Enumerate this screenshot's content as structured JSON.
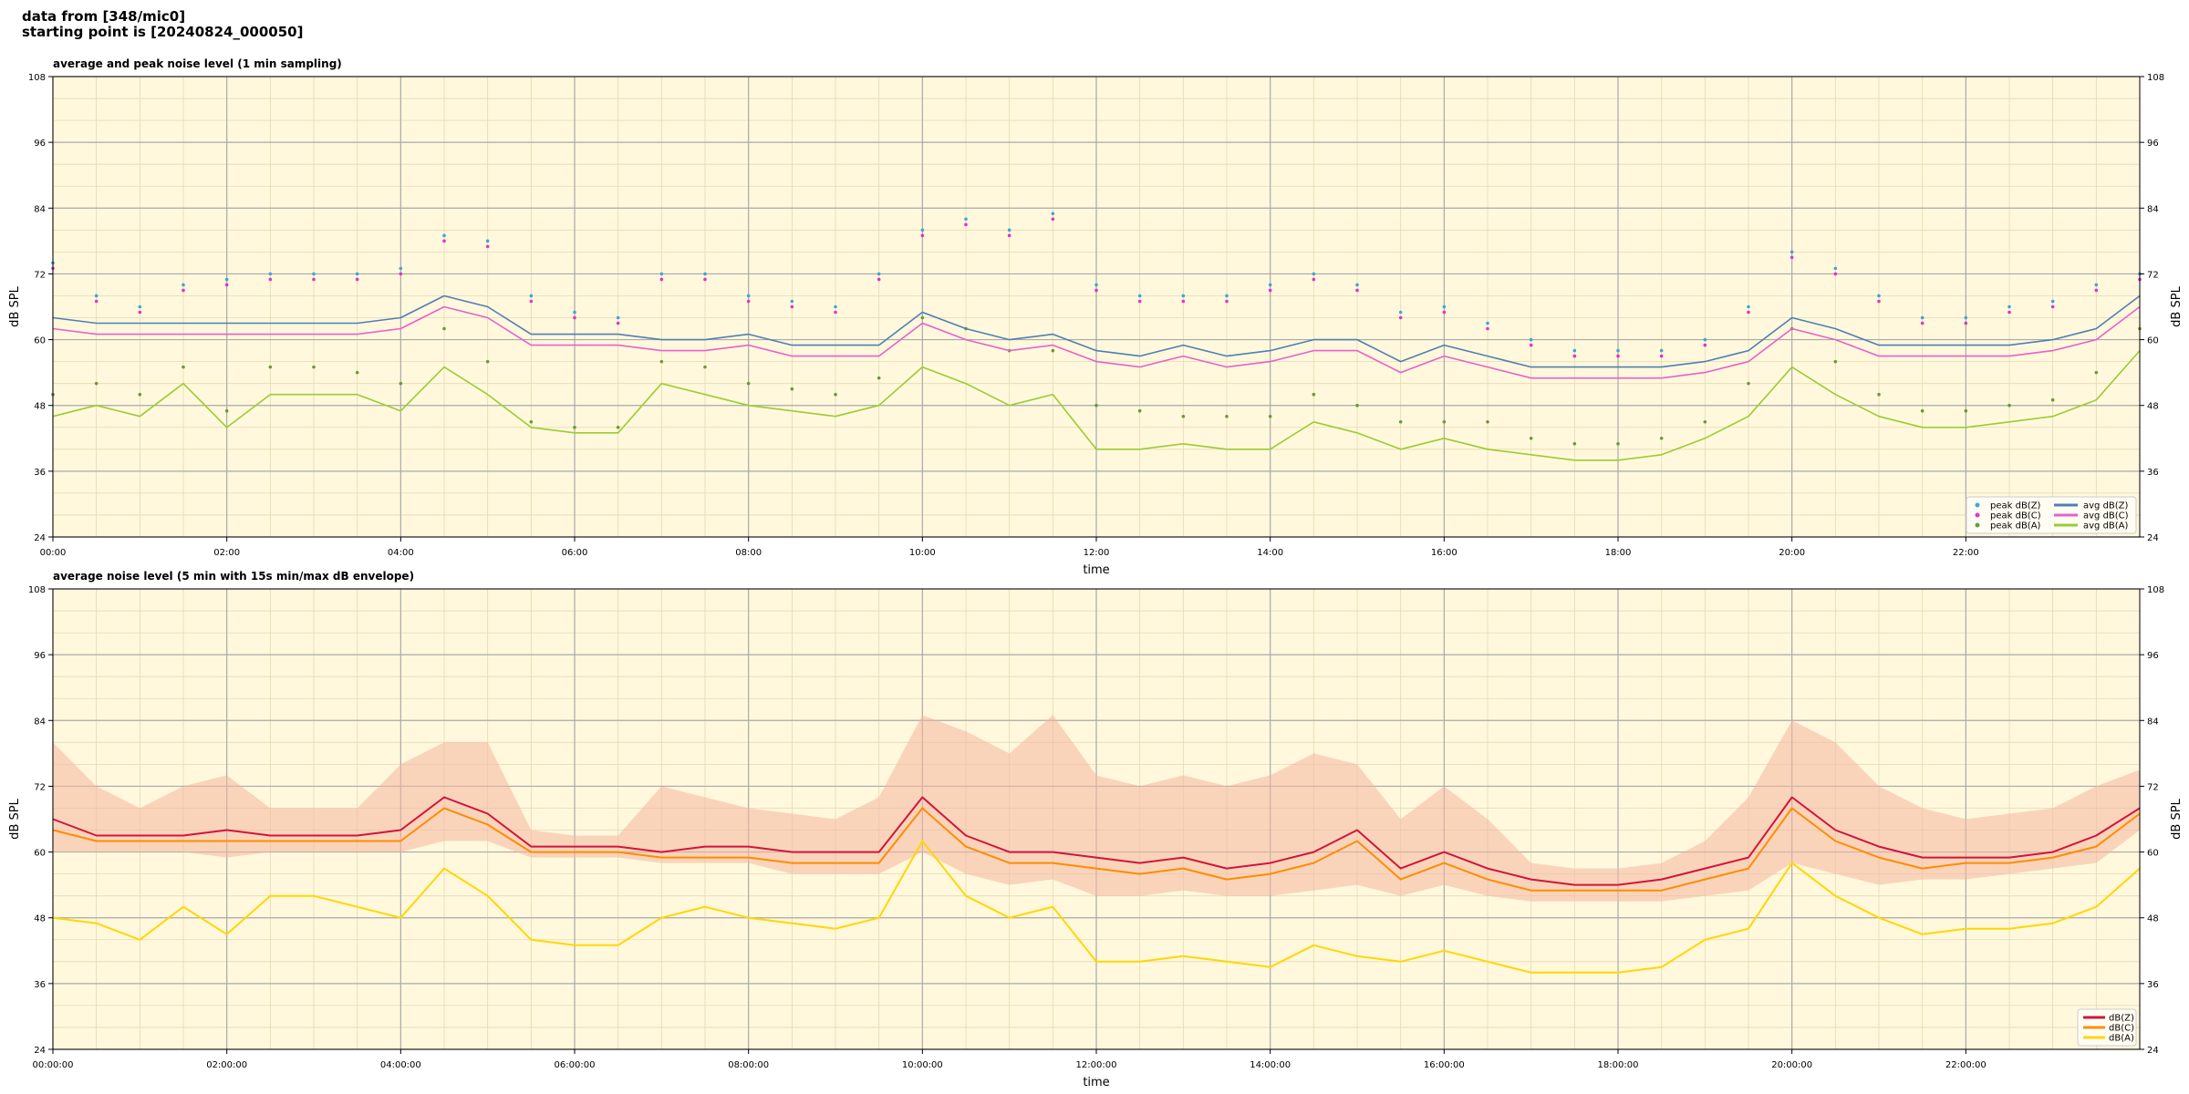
{
  "header": {
    "line1": "data from [348/mic0]",
    "line2": "starting point is [20240824_000050]"
  },
  "colors": {
    "plot_bg": "#fff8dc",
    "grid_major": "#a9a9a9",
    "grid_minor": "#e6d9b3",
    "avg_z": "#4f7fb5",
    "avg_c": "#e661cc",
    "avg_a": "#9acd32",
    "peak_z": "#3ba8d8",
    "peak_c": "#e233c9",
    "peak_a": "#6a9a3a",
    "env": "#f4b7a1",
    "line_z": "#d2143c",
    "line_c": "#ff8c00",
    "line_a": "#ffd700"
  },
  "chart_data": [
    {
      "type": "line",
      "title": "average and peak noise level (1 min sampling)",
      "xlabel": "time",
      "ylabel": "dB SPL",
      "ylabel_right": "dB SPL",
      "xlim": [
        0,
        24
      ],
      "ylim": [
        24,
        108
      ],
      "x_ticks": [
        0,
        2,
        4,
        6,
        8,
        10,
        12,
        14,
        16,
        18,
        20,
        22
      ],
      "x_tick_labels": [
        "00:00",
        "02:00",
        "04:00",
        "06:00",
        "08:00",
        "10:00",
        "12:00",
        "14:00",
        "16:00",
        "18:00",
        "20:00",
        "22:00"
      ],
      "y_ticks": [
        24,
        36,
        48,
        60,
        72,
        84,
        96,
        108
      ],
      "y_tick_labels": [
        "24",
        "36",
        "48",
        "60",
        "72",
        "84",
        "96",
        "108"
      ],
      "grid": true,
      "legend_position": "bottom-right",
      "x_unit": "hour",
      "x": [
        0,
        0.5,
        1,
        1.5,
        2,
        2.5,
        3,
        3.5,
        4,
        4.5,
        5,
        5.5,
        6,
        6.5,
        7,
        7.5,
        8,
        8.5,
        9,
        9.5,
        10,
        10.5,
        11,
        11.5,
        12,
        12.5,
        13,
        13.5,
        14,
        14.5,
        15,
        15.5,
        16,
        16.5,
        17,
        17.5,
        18,
        18.5,
        19,
        19.5,
        20,
        20.5,
        21,
        21.5,
        22,
        22.5,
        23,
        23.5,
        24
      ],
      "series": [
        {
          "name": "peak dB(Z)",
          "kind": "points",
          "color_key": "peak_z",
          "values": [
            74,
            68,
            66,
            70,
            71,
            72,
            72,
            72,
            73,
            79,
            78,
            68,
            65,
            64,
            72,
            72,
            68,
            67,
            66,
            72,
            80,
            82,
            80,
            83,
            70,
            68,
            68,
            68,
            70,
            72,
            70,
            65,
            66,
            63,
            60,
            58,
            58,
            58,
            60,
            66,
            76,
            73,
            68,
            64,
            64,
            66,
            67,
            70,
            72
          ]
        },
        {
          "name": "peak dB(C)",
          "kind": "points",
          "color_key": "peak_c",
          "values": [
            73,
            67,
            65,
            69,
            70,
            71,
            71,
            71,
            72,
            78,
            77,
            67,
            64,
            63,
            71,
            71,
            67,
            66,
            65,
            71,
            79,
            81,
            79,
            82,
            69,
            67,
            67,
            67,
            69,
            71,
            69,
            64,
            65,
            62,
            59,
            57,
            57,
            57,
            59,
            65,
            75,
            72,
            67,
            63,
            63,
            65,
            66,
            69,
            71
          ]
        },
        {
          "name": "peak dB(A)",
          "kind": "points",
          "color_key": "peak_a",
          "values": [
            50,
            52,
            50,
            55,
            47,
            55,
            55,
            54,
            52,
            62,
            56,
            45,
            44,
            44,
            56,
            55,
            52,
            51,
            50,
            53,
            64,
            62,
            58,
            58,
            48,
            47,
            46,
            46,
            46,
            50,
            48,
            45,
            45,
            45,
            42,
            41,
            41,
            42,
            45,
            52,
            62,
            56,
            50,
            47,
            47,
            48,
            49,
            54,
            62
          ]
        },
        {
          "name": "avg dB(Z)",
          "kind": "line",
          "color_key": "avg_z",
          "values": [
            64,
            63,
            63,
            63,
            63,
            63,
            63,
            63,
            64,
            68,
            66,
            61,
            61,
            61,
            60,
            60,
            61,
            59,
            59,
            59,
            65,
            62,
            60,
            61,
            58,
            57,
            59,
            57,
            58,
            60,
            60,
            56,
            59,
            57,
            55,
            55,
            55,
            55,
            56,
            58,
            64,
            62,
            59,
            59,
            59,
            59,
            60,
            62,
            68
          ]
        },
        {
          "name": "avg dB(C)",
          "kind": "line",
          "color_key": "avg_c",
          "values": [
            62,
            61,
            61,
            61,
            61,
            61,
            61,
            61,
            62,
            66,
            64,
            59,
            59,
            59,
            58,
            58,
            59,
            57,
            57,
            57,
            63,
            60,
            58,
            59,
            56,
            55,
            57,
            55,
            56,
            58,
            58,
            54,
            57,
            55,
            53,
            53,
            53,
            53,
            54,
            56,
            62,
            60,
            57,
            57,
            57,
            57,
            58,
            60,
            66
          ]
        },
        {
          "name": "avg dB(A)",
          "kind": "line",
          "color_key": "avg_a",
          "values": [
            46,
            48,
            46,
            52,
            44,
            50,
            50,
            50,
            47,
            55,
            50,
            44,
            43,
            43,
            52,
            50,
            48,
            47,
            46,
            48,
            55,
            52,
            48,
            50,
            40,
            40,
            41,
            40,
            40,
            45,
            43,
            40,
            42,
            40,
            39,
            38,
            38,
            39,
            42,
            46,
            55,
            50,
            46,
            44,
            44,
            45,
            46,
            49,
            58
          ]
        }
      ]
    },
    {
      "type": "line",
      "title": "average noise level (5 min with 15s min/max dB envelope)",
      "xlabel": "time",
      "ylabel": "dB SPL",
      "ylabel_right": "dB SPL",
      "xlim": [
        0,
        24
      ],
      "ylim": [
        24,
        108
      ],
      "x_ticks": [
        0,
        2,
        4,
        6,
        8,
        10,
        12,
        14,
        16,
        18,
        20,
        22
      ],
      "x_tick_labels": [
        "00:00:00",
        "02:00:00",
        "04:00:00",
        "06:00:00",
        "08:00:00",
        "10:00:00",
        "12:00:00",
        "14:00:00",
        "16:00:00",
        "18:00:00",
        "20:00:00",
        "22:00:00"
      ],
      "y_ticks": [
        24,
        36,
        48,
        60,
        72,
        84,
        96,
        108
      ],
      "y_tick_labels": [
        "24",
        "36",
        "48",
        "60",
        "72",
        "84",
        "96",
        "108"
      ],
      "grid": true,
      "legend_position": "bottom-right",
      "x_unit": "hour",
      "x": [
        0,
        0.5,
        1,
        1.5,
        2,
        2.5,
        3,
        3.5,
        4,
        4.5,
        5,
        5.5,
        6,
        6.5,
        7,
        7.5,
        8,
        8.5,
        9,
        9.5,
        10,
        10.5,
        11,
        11.5,
        12,
        12.5,
        13,
        13.5,
        14,
        14.5,
        15,
        15.5,
        16,
        16.5,
        17,
        17.5,
        18,
        18.5,
        19,
        19.5,
        20,
        20.5,
        21,
        21.5,
        22,
        22.5,
        23,
        23.5,
        24
      ],
      "envelope": {
        "color_key": "env",
        "upper": [
          80,
          72,
          68,
          72,
          74,
          68,
          68,
          68,
          76,
          80,
          80,
          64,
          63,
          63,
          72,
          70,
          68,
          67,
          66,
          70,
          85,
          82,
          78,
          85,
          74,
          72,
          74,
          72,
          74,
          78,
          76,
          66,
          72,
          66,
          58,
          57,
          57,
          58,
          62,
          70,
          84,
          80,
          72,
          68,
          66,
          67,
          68,
          72,
          75
        ],
        "lower": [
          60,
          60,
          60,
          60,
          59,
          60,
          60,
          60,
          60,
          62,
          62,
          59,
          59,
          59,
          58,
          58,
          58,
          56,
          56,
          56,
          60,
          56,
          54,
          55,
          52,
          52,
          53,
          52,
          52,
          53,
          54,
          52,
          54,
          52,
          51,
          51,
          51,
          51,
          52,
          53,
          58,
          56,
          54,
          55,
          55,
          56,
          57,
          58,
          64
        ]
      },
      "series": [
        {
          "name": "dB(Z)",
          "color_key": "line_z",
          "values": [
            66,
            63,
            63,
            63,
            64,
            63,
            63,
            63,
            64,
            70,
            67,
            61,
            61,
            61,
            60,
            61,
            61,
            60,
            60,
            60,
            70,
            63,
            60,
            60,
            59,
            58,
            59,
            57,
            58,
            60,
            64,
            57,
            60,
            57,
            55,
            54,
            54,
            55,
            57,
            59,
            70,
            64,
            61,
            59,
            59,
            59,
            60,
            63,
            68
          ]
        },
        {
          "name": "dB(C)",
          "color_key": "line_c",
          "values": [
            64,
            62,
            62,
            62,
            62,
            62,
            62,
            62,
            62,
            68,
            65,
            60,
            60,
            60,
            59,
            59,
            59,
            58,
            58,
            58,
            68,
            61,
            58,
            58,
            57,
            56,
            57,
            55,
            56,
            58,
            62,
            55,
            58,
            55,
            53,
            53,
            53,
            53,
            55,
            57,
            68,
            62,
            59,
            57,
            58,
            58,
            59,
            61,
            67
          ]
        },
        {
          "name": "dB(A)",
          "color_key": "line_a",
          "values": [
            48,
            47,
            44,
            50,
            45,
            52,
            52,
            50,
            48,
            57,
            52,
            44,
            43,
            43,
            48,
            50,
            48,
            47,
            46,
            48,
            62,
            52,
            48,
            50,
            40,
            40,
            41,
            40,
            39,
            43,
            41,
            40,
            42,
            40,
            38,
            38,
            38,
            39,
            44,
            46,
            58,
            52,
            48,
            45,
            46,
            46,
            47,
            50,
            57
          ]
        }
      ]
    }
  ]
}
